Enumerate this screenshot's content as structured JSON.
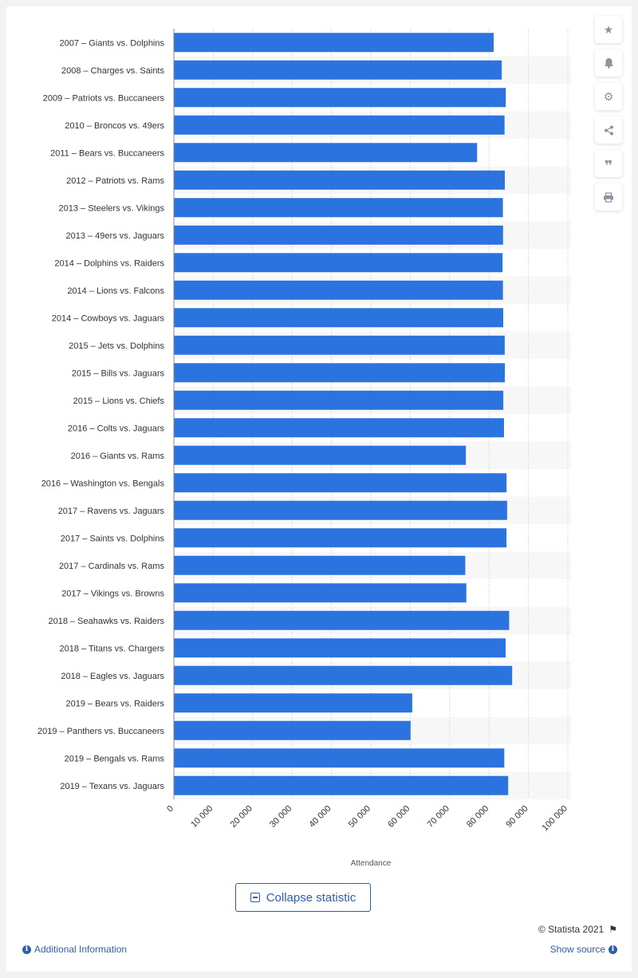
{
  "chart_data": {
    "type": "bar",
    "orientation": "horizontal",
    "categories": [
      "2007 – Giants vs. Dolphins",
      "2008 – Charges vs. Saints",
      "2009 – Patriots vs. Buccaneers",
      "2010 – Broncos vs. 49ers",
      "2011 – Bears vs. Buccaneers",
      "2012 – Patriots vs. Rams",
      "2013 – Steelers vs. Vikings",
      "2013 – 49ers vs. Jaguars",
      "2014 – Dolphins vs. Raiders",
      "2014 – Lions vs. Falcons",
      "2014 – Cowboys vs. Jaguars",
      "2015 – Jets vs. Dolphins",
      "2015 – Bills vs. Jaguars",
      "2015 – Lions vs. Chiefs",
      "2016 – Colts vs. Jaguars",
      "2016 – Giants vs. Rams",
      "2016 – Washington vs. Bengals",
      "2017 – Ravens vs. Jaguars",
      "2017 – Saints vs. Dolphins",
      "2017 – Cardinals vs. Rams",
      "2017 – Vikings vs. Browns",
      "2018 – Seahawks vs. Raiders",
      "2018 – Titans vs. Chargers",
      "2018 – Eagles vs. Jaguars",
      "2019 – Bears vs. Raiders",
      "2019 – Panthers vs. Buccaneers",
      "2019 – Bengals vs. Rams",
      "2019 – Texans vs. Jaguars"
    ],
    "values": [
      81176,
      83226,
      84254,
      83941,
      76981,
      84004,
      83518,
      83559,
      83436,
      83532,
      83603,
      83986,
      84021,
      83624,
      83798,
      74121,
      84448,
      84592,
      84423,
      73967,
      74237,
      85108,
      84207,
      85870,
      60507,
      60087,
      83874,
      84861
    ],
    "xlabel": "Attendance",
    "xlim": [
      0,
      100000
    ],
    "xticks": [
      0,
      10000,
      20000,
      30000,
      40000,
      50000,
      60000,
      70000,
      80000,
      90000,
      100000
    ],
    "xtick_labels": [
      "0",
      "10 000",
      "20 000",
      "30 000",
      "40 000",
      "50 000",
      "60 000",
      "70 000",
      "80 000",
      "90 000",
      "100 000"
    ],
    "grid": true,
    "bar_color": "#2b74e0",
    "stripe_color": "#f7f7f7"
  },
  "toolbar": {
    "icons": [
      "star-icon",
      "bell-icon",
      "gear-icon",
      "share-icon",
      "quote-icon",
      "print-icon"
    ]
  },
  "footer": {
    "collapse_label": "Collapse statistic",
    "copyright": "© Statista 2021",
    "additional_info": "Additional Information",
    "show_source": "Show source"
  }
}
